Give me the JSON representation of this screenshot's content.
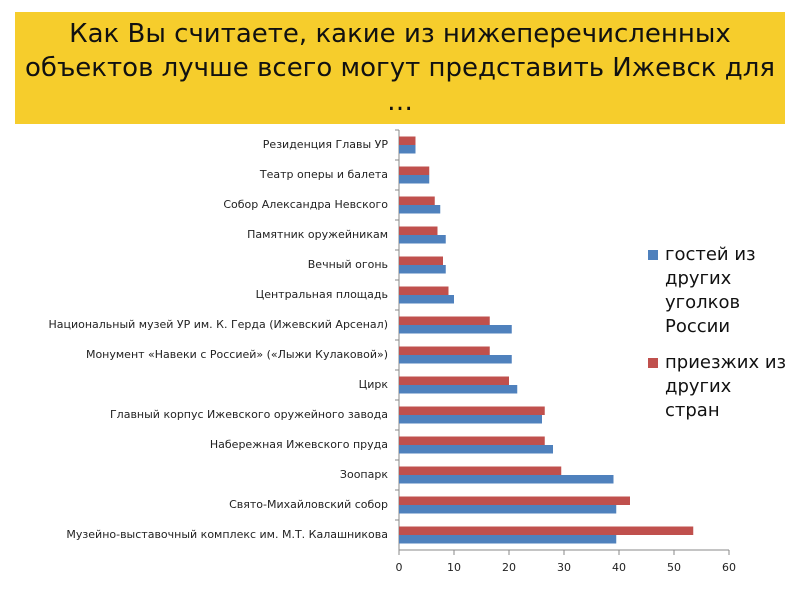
{
  "chart_data": {
    "type": "hbar",
    "title": "Как Вы считаете, какие из нижеперечисленных объектов лучше всего могут представить Ижевск для …",
    "categories": [
      "Резиденция Главы УР",
      "Театр оперы и балета",
      "Собор Александра Невского",
      "Памятник оружейникам",
      "Вечный огонь",
      "Центральная площадь",
      "Национальный музей УР им. К. Герда (Ижевский Арсенал)",
      "Монумент «Навеки с Россией» («Лыжи Кулаковой»)",
      "Цирк",
      "Главный корпус Ижевского оружейного завода",
      "Набережная Ижевского пруда",
      "Зоопарк",
      "Свято-Михайловский собор",
      "Музейно-выставочный комплекс им. М.Т. Калашникова"
    ],
    "series": [
      {
        "name": "гостей из других уголков России",
        "color": "#4f81bd",
        "values": [
          3,
          5.5,
          7.5,
          8.5,
          8.5,
          10,
          20.5,
          20.5,
          21.5,
          26,
          28,
          39,
          39.5,
          39.5
        ]
      },
      {
        "name": "приезжих из других стран",
        "color": "#c0504d",
        "values": [
          3,
          5.5,
          6.5,
          7,
          8,
          9,
          16.5,
          16.5,
          20,
          26.5,
          26.5,
          29.5,
          42,
          53.5
        ]
      }
    ],
    "xlim": [
      0,
      60
    ],
    "xticks": [
      0,
      10,
      20,
      30,
      40,
      50,
      60
    ]
  }
}
